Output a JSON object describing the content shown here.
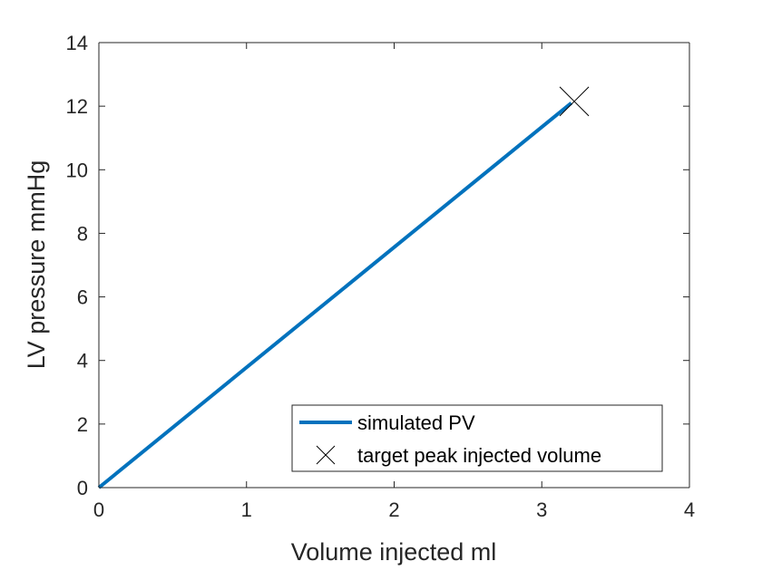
{
  "chart_data": {
    "type": "line",
    "title": "",
    "xlabel": "Volume injected ml",
    "ylabel": "LV pressure mmHg",
    "xlim": [
      0,
      4
    ],
    "ylim": [
      0,
      14
    ],
    "xticks": [
      0,
      1,
      2,
      3,
      4
    ],
    "yticks": [
      0,
      2,
      4,
      6,
      8,
      10,
      12,
      14
    ],
    "xtick_labels": [
      "0",
      "1",
      "2",
      "3",
      "4"
    ],
    "ytick_labels": [
      "0",
      "2",
      "4",
      "6",
      "8",
      "10",
      "12",
      "14"
    ],
    "grid": false,
    "legend_position": "bottom-right",
    "series": [
      {
        "name": "simulated PV",
        "kind": "line",
        "color": "#0072BD",
        "x": [
          0,
          3.2
        ],
        "y": [
          0,
          12.1
        ]
      },
      {
        "name": "target peak injected volume",
        "kind": "marker",
        "marker": "x",
        "color": "#000000",
        "x": [
          3.22
        ],
        "y": [
          12.15
        ]
      }
    ]
  }
}
